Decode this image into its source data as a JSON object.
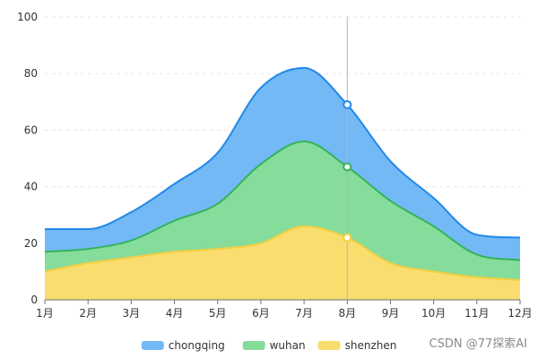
{
  "chart_data": {
    "type": "area",
    "stacked": true,
    "categories": [
      "1月",
      "2月",
      "3月",
      "4月",
      "5月",
      "6月",
      "7月",
      "8月",
      "9月",
      "10月",
      "11月",
      "12月"
    ],
    "ylim": [
      0,
      100
    ],
    "yticks": [
      0,
      20,
      40,
      60,
      80,
      100
    ],
    "grid": "horizontal-dashed",
    "legend_position": "bottom-center",
    "series": [
      {
        "name": "shenzhen",
        "color": "#f9de6f",
        "line_color": "#f5cf3e",
        "values": [
          10,
          13,
          15,
          17,
          18,
          20,
          26,
          22,
          13,
          10,
          8,
          7
        ]
      },
      {
        "name": "wuhan",
        "color": "#86dc9b",
        "line_color": "#34b35a",
        "values": [
          7,
          5,
          6,
          11,
          16,
          28,
          30,
          25,
          22,
          16,
          8,
          7
        ]
      },
      {
        "name": "chongqing",
        "color": "#73b9f6",
        "line_color": "#2188e8",
        "values": [
          8,
          7,
          10,
          13,
          18,
          27,
          26,
          22,
          14,
          10,
          7,
          8
        ]
      }
    ],
    "legend_order": [
      "chongqing",
      "wuhan",
      "shenzhen"
    ],
    "highlight_category": "8月"
  },
  "watermark": "CSDN @77探索AI"
}
